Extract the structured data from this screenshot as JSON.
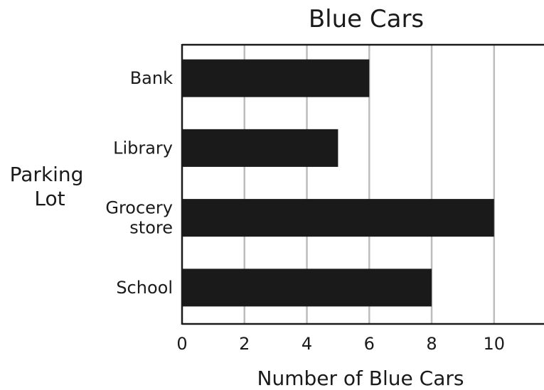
{
  "chart_data": {
    "type": "bar",
    "orientation": "horizontal",
    "title": "Blue Cars",
    "categories": [
      "Bank",
      "Library",
      "Grocery store",
      "School"
    ],
    "category_lines": [
      [
        "Bank"
      ],
      [
        "Library"
      ],
      [
        "Grocery",
        "store"
      ],
      [
        "School"
      ]
    ],
    "values": [
      6,
      5,
      10,
      8
    ],
    "xlabel": "Number of Blue Cars",
    "ylabel_lines": [
      "Parking",
      "Lot"
    ],
    "xticks": [
      0,
      2,
      4,
      6,
      8,
      10
    ],
    "xlim": [
      0,
      11.6
    ],
    "grid": "vertical",
    "bar_color": "#1a1a1a",
    "grid_color": "#bdbdbd"
  }
}
